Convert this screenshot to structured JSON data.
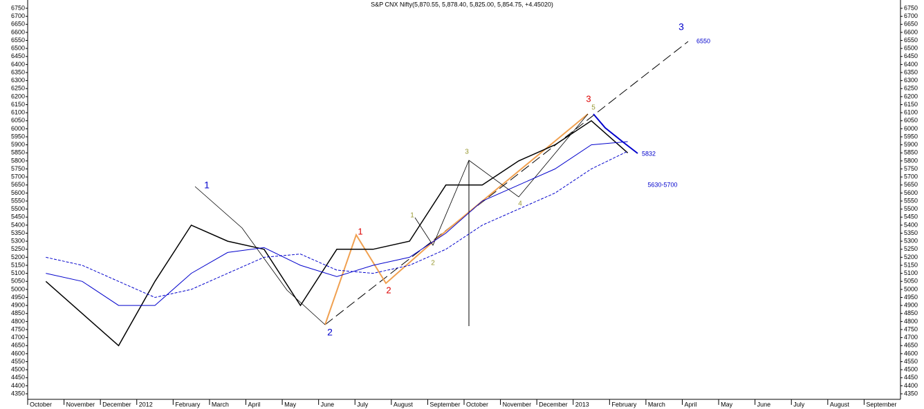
{
  "chart_data": {
    "type": "line",
    "title": "S&P CNX Nifty(5,870.55, 5,878.40, 5,825.00, 5,854.75, +4.45020)",
    "categories": [
      "October",
      "November",
      "December",
      "2012",
      "February",
      "March",
      "April",
      "May",
      "June",
      "July",
      "August",
      "September",
      "October",
      "November",
      "December",
      "2013",
      "February",
      "March",
      "April",
      "May",
      "June",
      "July",
      "August",
      "September"
    ],
    "series": [
      {
        "color": "#000000",
        "values": [
          5050,
          4850,
          4650,
          5050,
          5400,
          5300,
          5250,
          4900,
          5250,
          5250,
          5300,
          5650,
          5650,
          5800,
          5900,
          6050,
          5850,
          null,
          null,
          null,
          null,
          null,
          null,
          null
        ]
      },
      {
        "color": "#0000cc",
        "values": [
          5100,
          5050,
          4900,
          4900,
          5100,
          5230,
          5260,
          5150,
          5080,
          5150,
          5200,
          5350,
          5550,
          5650,
          5750,
          5900,
          5920,
          null,
          null,
          null,
          null,
          null,
          null,
          null
        ]
      },
      {
        "color": "#0000cc",
        "dashed": true,
        "values": [
          5200,
          5150,
          5050,
          4950,
          5000,
          5100,
          5200,
          5220,
          5120,
          5100,
          5150,
          5250,
          5400,
          5500,
          5600,
          5750,
          5860,
          null,
          null,
          null,
          null,
          null,
          null,
          null
        ]
      }
    ],
    "ylim": [
      4350,
      6750
    ],
    "yticks": [
      4350,
      4400,
      4450,
      4500,
      4550,
      4600,
      4650,
      4700,
      4750,
      4800,
      4850,
      4900,
      4950,
      5000,
      5050,
      5100,
      5150,
      5200,
      5250,
      5300,
      5350,
      5400,
      5450,
      5500,
      5550,
      5600,
      5650,
      5700,
      5750,
      5800,
      5850,
      5900,
      5950,
      6000,
      6050,
      6100,
      6150,
      6200,
      6250,
      6300,
      6350,
      6400,
      6450,
      6500,
      6550,
      6600,
      6650,
      6700,
      6750
    ],
    "grid": false,
    "annotations": [
      {
        "text": "1",
        "color": "#0000cc"
      },
      {
        "text": "2",
        "color": "#0000cc"
      },
      {
        "text": "3",
        "color": "#0000cc"
      },
      {
        "text": "6550",
        "color": "#0000cc"
      },
      {
        "text": "1",
        "color": "#dd0000"
      },
      {
        "text": "2",
        "color": "#dd0000"
      },
      {
        "text": "3",
        "color": "#dd0000"
      },
      {
        "text": "1",
        "color": "#999933"
      },
      {
        "text": "2",
        "color": "#999933"
      },
      {
        "text": "3",
        "color": "#999933"
      },
      {
        "text": "4",
        "color": "#999933"
      },
      {
        "text": "5",
        "color": "#999933"
      },
      {
        "text": "5832",
        "color": "#0000cc"
      },
      {
        "text": "5630-5700",
        "color": "#0000cc"
      }
    ]
  }
}
